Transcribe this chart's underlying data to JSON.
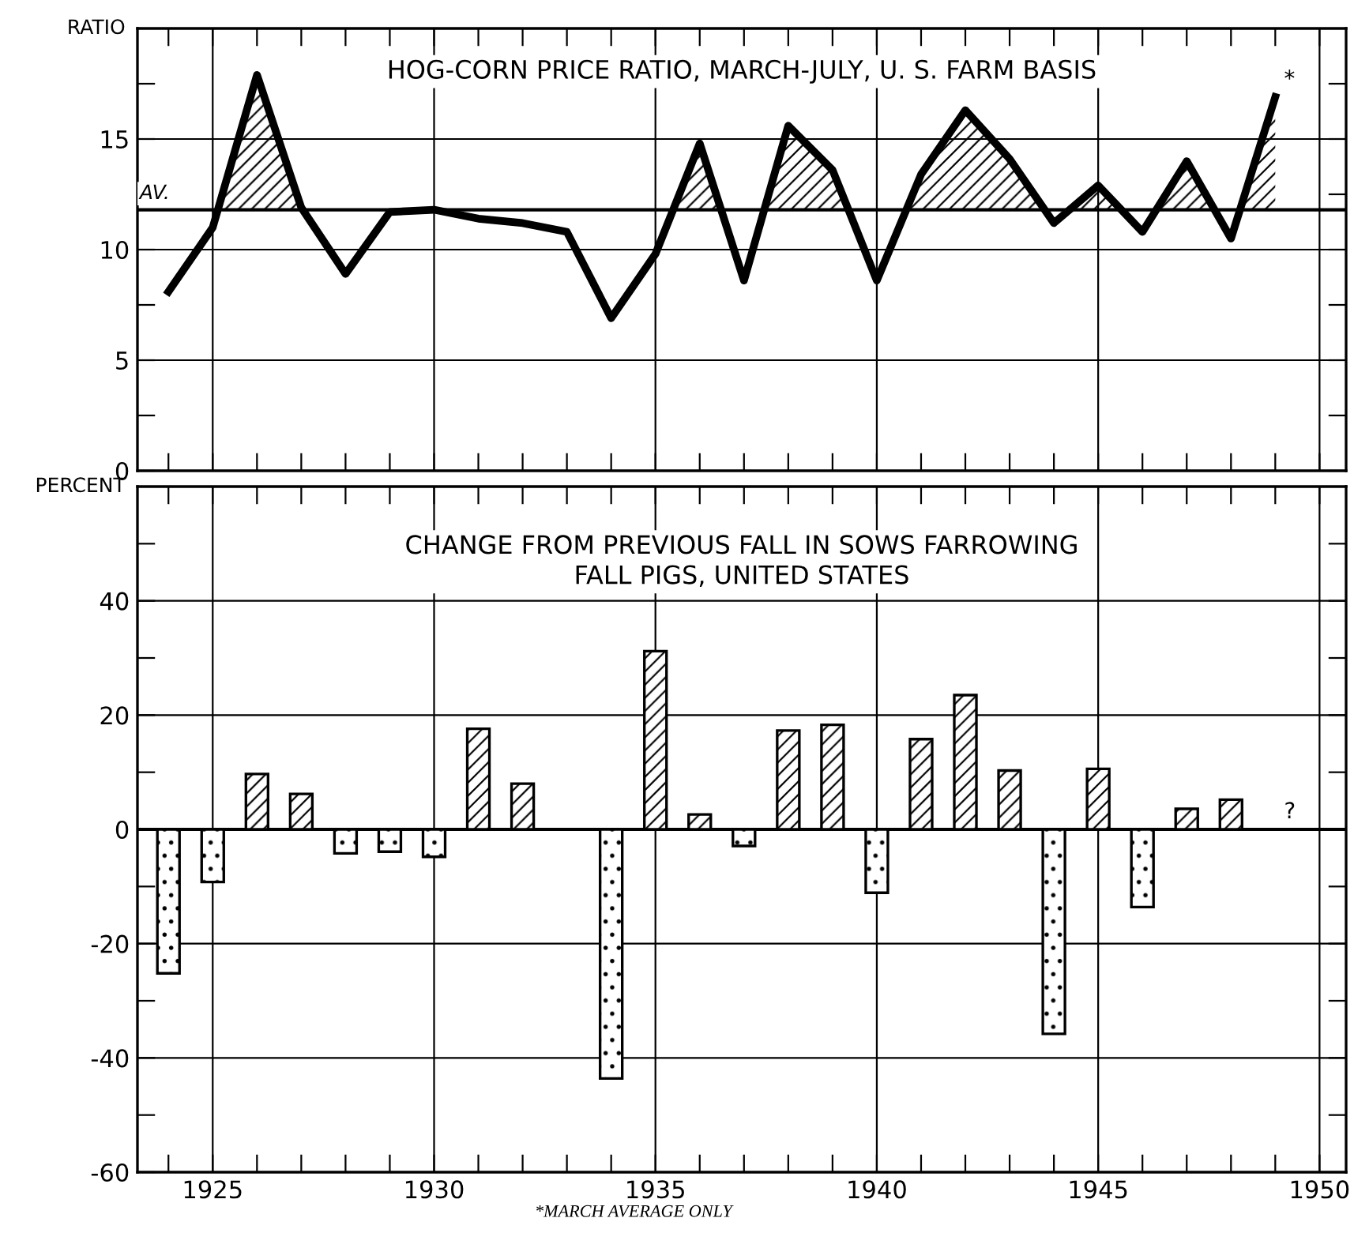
{
  "chart_data": [
    {
      "type": "line",
      "title": "HOG-CORN PRICE RATIO, MARCH-JULY, U. S. FARM BASIS",
      "ylabel": "RATIO",
      "x": [
        1924,
        1925,
        1926,
        1927,
        1928,
        1929,
        1930,
        1931,
        1932,
        1933,
        1934,
        1935,
        1936,
        1937,
        1938,
        1939,
        1940,
        1941,
        1942,
        1943,
        1944,
        1945,
        1946,
        1947,
        1948,
        1949
      ],
      "series": [
        {
          "color": "#000000",
          "values": [
            8.1,
            11.0,
            17.9,
            11.9,
            8.9,
            11.7,
            11.8,
            11.4,
            11.2,
            10.8,
            6.9,
            9.8,
            14.8,
            8.6,
            15.6,
            13.6,
            8.6,
            13.4,
            16.3,
            14.1,
            11.2,
            12.9,
            10.8,
            14.0,
            10.5,
            16.9
          ]
        },
        {
          "type": "area",
          "color": "#000000",
          "x": [
            1925.12,
            1926,
            1927,
            1927.03,
            null,
            1935.4,
            1936,
            1936.48,
            null,
            1937.46,
            1938,
            1939,
            1939.36,
            null,
            1940.67,
            1941,
            1942,
            1943,
            1943.79,
            null,
            1944.35,
            1945,
            1945.52,
            null,
            1946.31,
            1947,
            1947.63,
            null,
            1948.2,
            1949
          ],
          "values": [
            11.8,
            17.9,
            11.9,
            11.8,
            null,
            11.8,
            14.8,
            11.8,
            null,
            11.8,
            15.6,
            13.6,
            11.8,
            null,
            11.8,
            13.4,
            16.3,
            14.1,
            11.8,
            null,
            11.8,
            12.9,
            11.8,
            null,
            11.8,
            14.0,
            11.8,
            null,
            11.8,
            16.9
          ]
        }
      ],
      "xlim": [
        1923.3,
        1950.6
      ],
      "xticks": [
        {
          "value": 1924,
          "label": null
        },
        1925,
        {
          "value": 1926,
          "label": null
        },
        {
          "value": 1927,
          "label": null
        },
        {
          "value": 1928,
          "label": null
        },
        {
          "value": 1929,
          "label": null
        },
        1930,
        {
          "value": 1931,
          "label": null
        },
        {
          "value": 1932,
          "label": null
        },
        {
          "value": 1933,
          "label": null
        },
        {
          "value": 1934,
          "label": null
        },
        1935,
        {
          "value": 1936,
          "label": null
        },
        {
          "value": 1937,
          "label": null
        },
        {
          "value": 1938,
          "label": null
        },
        {
          "value": 1939,
          "label": null
        },
        1940,
        {
          "value": 1941,
          "label": null
        },
        {
          "value": 1942,
          "label": null
        },
        {
          "value": 1943,
          "label": null
        },
        {
          "value": 1944,
          "label": null
        },
        1945,
        {
          "value": 1946,
          "label": null
        },
        {
          "value": 1947,
          "label": null
        },
        {
          "value": 1948,
          "label": null
        },
        {
          "value": 1949,
          "label": null
        },
        1950
      ],
      "ylim": [
        0,
        20
      ],
      "yticks": [
        0,
        {
          "value": 2.5,
          "label": null
        },
        5,
        {
          "value": 7.5,
          "label": null
        },
        10,
        {
          "value": 12.5,
          "label": null
        },
        15,
        {
          "value": 17.5,
          "label": null
        }
      ],
      "ref_lines": [
        {
          "axis": "y",
          "value": 11.8,
          "label": "AV."
        }
      ],
      "annotations": [
        {
          "text": "*",
          "x": 1949,
          "y": 16.9
        }
      ],
      "grid": true,
      "tick_labels": "y",
      "marker": "none",
      "line_style": "solid"
    },
    {
      "type": "bar",
      "title": "CHANGE FROM PREVIOUS FALL IN SOWS FARROWING\nFALL PIGS, UNITED STATES",
      "ylabel": "PERCENT",
      "x": [
        1924,
        1925,
        1926,
        1927,
        1928,
        1929,
        1930,
        1931,
        1932,
        1933,
        1934,
        1935,
        1936,
        1937,
        1938,
        1939,
        1940,
        1941,
        1942,
        1943,
        1944,
        1945,
        1946,
        1947,
        1948
      ],
      "series": [
        {
          "color": "#000000",
          "values": [
            -25.2,
            -9.2,
            9.7,
            6.2,
            -4.2,
            -3.9,
            -4.8,
            17.6,
            8.0,
            0,
            -43.6,
            31.2,
            2.6,
            -2.9,
            17.3,
            18.3,
            -11.1,
            15.8,
            23.5,
            10.3,
            -35.8,
            10.6,
            -13.6,
            3.6,
            5.2
          ]
        }
      ],
      "xlim": [
        1923.3,
        1950.6
      ],
      "xticks": [
        {
          "value": 1924,
          "label": null
        },
        1925,
        {
          "value": 1926,
          "label": null
        },
        {
          "value": 1927,
          "label": null
        },
        {
          "value": 1928,
          "label": null
        },
        {
          "value": 1929,
          "label": null
        },
        1930,
        {
          "value": 1931,
          "label": null
        },
        {
          "value": 1932,
          "label": null
        },
        {
          "value": 1933,
          "label": null
        },
        {
          "value": 1934,
          "label": null
        },
        1935,
        {
          "value": 1936,
          "label": null
        },
        {
          "value": 1937,
          "label": null
        },
        {
          "value": 1938,
          "label": null
        },
        {
          "value": 1939,
          "label": null
        },
        1940,
        {
          "value": 1941,
          "label": null
        },
        {
          "value": 1942,
          "label": null
        },
        {
          "value": 1943,
          "label": null
        },
        {
          "value": 1944,
          "label": null
        },
        1945,
        {
          "value": 1946,
          "label": null
        },
        {
          "value": 1947,
          "label": null
        },
        {
          "value": 1948,
          "label": null
        },
        {
          "value": 1949,
          "label": null
        },
        1950
      ],
      "ylim": [
        -60,
        60
      ],
      "yticks": [
        -60,
        {
          "value": -50,
          "label": null
        },
        -40,
        {
          "value": -30,
          "label": null
        },
        -20,
        {
          "value": -10,
          "label": null
        },
        0,
        {
          "value": 10,
          "label": null
        },
        20,
        {
          "value": 30,
          "label": null
        },
        40,
        {
          "value": 50,
          "label": null
        }
      ],
      "ref_lines": [
        {
          "axis": "y",
          "value": 0,
          "label": null
        }
      ],
      "annotations": [
        {
          "text": "?",
          "x": 1949,
          "y": 0
        },
        "*MARCH AVERAGE ONLY"
      ],
      "grid": true
    }
  ]
}
